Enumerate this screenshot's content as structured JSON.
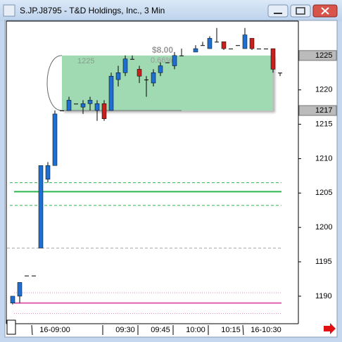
{
  "window_title": "S.JP.J8795 - T&D Holdings, Inc., 3 Min",
  "chart_data": {
    "type": "candlestick",
    "categories": [
      null,
      null,
      null,
      null,
      null,
      null,
      "16-09:00",
      null,
      null,
      null,
      null,
      null,
      null,
      null,
      null,
      null,
      "09:30",
      null,
      null,
      null,
      null,
      "09:45",
      null,
      null,
      null,
      null,
      "10:00",
      null,
      null,
      null,
      null,
      "10:15",
      null,
      null,
      null,
      null,
      "16-10:30",
      null,
      null
    ],
    "open": [
      1189,
      1190,
      1193,
      1193,
      1197,
      1207,
      1209,
      1217,
      1217,
      1218,
      1217.5,
      1218,
      1217,
      1218,
      1217,
      1221.5,
      1222.5,
      1224.5,
      1223,
      1221.5,
      1221,
      1222.5,
      1224,
      1223.5,
      1225,
      null,
      1225.5,
      1226.5,
      1226,
      1227,
      1227,
      1226,
      1226.5,
      1226,
      1227.5,
      1226,
      1226,
      1226,
      1222.5
    ],
    "high": [
      1190,
      1192,
      1193,
      1193,
      1209,
      1209.5,
      1217,
      1217,
      1219,
      1218,
      1218.5,
      1219,
      1218.5,
      1218.5,
      1222.5,
      1223.5,
      1225,
      1225,
      1223.5,
      1222,
      1223,
      1224,
      1224,
      1225.5,
      1226,
      null,
      1226.5,
      1227,
      1227.8,
      1229,
      1227,
      1226,
      1226.5,
      1229,
      1227.5,
      1226,
      1226,
      1226,
      1222.5
    ],
    "low": [
      1188.8,
      1189,
      1193,
      1193,
      1197,
      1206.5,
      1209,
      1217,
      1217,
      1218,
      1216.5,
      1217,
      1215.5,
      1215.5,
      1217,
      1220.5,
      1222,
      1224.5,
      1221,
      1219,
      1220.5,
      1222,
      1224,
      1223,
      1225,
      null,
      1225.5,
      1226.5,
      1226,
      1227,
      1225.8,
      1226,
      1226.5,
      1226,
      1225.8,
      1226,
      1226,
      1222.5,
      1222
    ],
    "close": [
      1190,
      1192,
      1193,
      1193,
      1209,
      1209,
      1216.5,
      1217,
      1218.5,
      1218,
      1218,
      1218.5,
      1218,
      1215.8,
      1222,
      1222.5,
      1224.5,
      1224.5,
      1222,
      1221.5,
      1222.5,
      1223.5,
      1224,
      1225,
      1225,
      null,
      1226,
      1226.5,
      1227.5,
      1227,
      1226,
      1226,
      1226.5,
      1228,
      1226,
      1226,
      1226,
      1223,
      1222.5
    ],
    "up_color": "#1f6fd0",
    "down_color": "#c8201c",
    "ylim": [
      1186,
      1230
    ],
    "yticks": [
      1190,
      1195,
      1200,
      1205,
      1210,
      1215,
      1220
    ],
    "price_markers": [
      1225,
      1217
    ],
    "levels": [
      {
        "value": 1206.5,
        "color": "#2db84d",
        "style": "dashed"
      },
      {
        "value": 1205.2,
        "color": "#2db84d",
        "style": "solid"
      },
      {
        "value": 1203.2,
        "color": "#2db84d",
        "style": "dashed"
      },
      {
        "value": 1197,
        "color": "#aaaaaa",
        "style": "dashed"
      },
      {
        "value": 1190.5,
        "color": "#e080c0",
        "style": "dotted"
      },
      {
        "value": 1189,
        "color": "#e060b0",
        "style": "solid"
      },
      {
        "value": 1187.5,
        "color": "#e080c0",
        "style": "dotted"
      }
    ],
    "box": {
      "ylim": [
        1217,
        1225
      ],
      "color": "#8fd4a6",
      "labels": [
        "1225",
        "$8.00",
        "0.66%"
      ]
    }
  }
}
